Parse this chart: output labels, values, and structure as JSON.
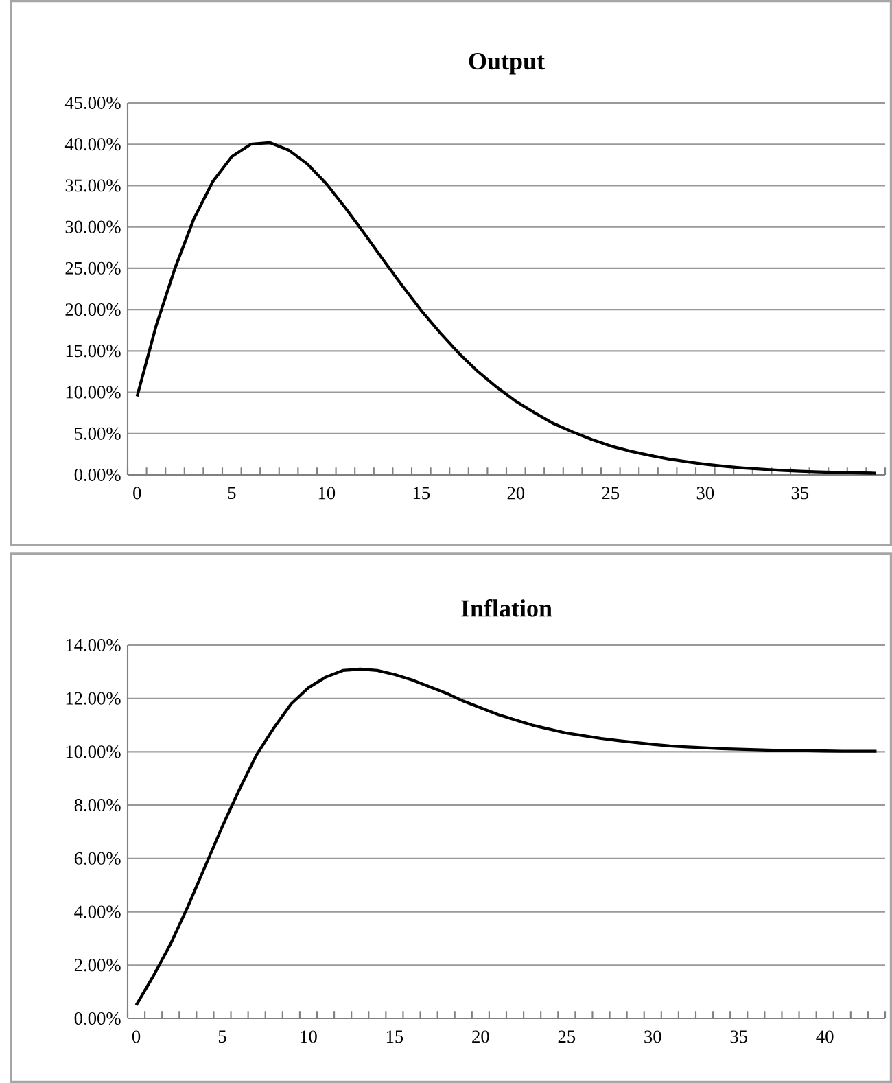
{
  "chart_data": [
    {
      "type": "line",
      "title": "Output",
      "categories": [
        "0",
        null,
        null,
        null,
        null,
        "5",
        null,
        null,
        null,
        null,
        "10",
        null,
        null,
        null,
        null,
        "15",
        null,
        null,
        null,
        null,
        "20",
        null,
        null,
        null,
        null,
        "25",
        null,
        null,
        null,
        null,
        "30",
        null,
        null,
        null,
        null,
        "35",
        null,
        null,
        null,
        null
      ],
      "series": [
        {
          "color": "#000000",
          "values": [
            9.5,
            18,
            25,
            31,
            35.5,
            38.5,
            40,
            40.2,
            39.3,
            37.6,
            35.2,
            32.3,
            29.2,
            26,
            22.9,
            19.9,
            17.2,
            14.7,
            12.5,
            10.6,
            8.9,
            7.5,
            6.2,
            5.2,
            4.3,
            3.5,
            2.9,
            2.4,
            1.95,
            1.6,
            1.3,
            1.05,
            0.85,
            0.7,
            0.55,
            0.45,
            0.37,
            0.3,
            0.25,
            0.2
          ]
        }
      ],
      "ylim": [
        0,
        45
      ],
      "yticks": [
        {
          "value": 0,
          "label": "0.00%"
        },
        {
          "value": 5,
          "label": "5.00%"
        },
        {
          "value": 10,
          "label": "10.00%"
        },
        {
          "value": 15,
          "label": "15.00%"
        },
        {
          "value": 20,
          "label": "20.00%"
        },
        {
          "value": 25,
          "label": "25.00%"
        },
        {
          "value": 30,
          "label": "30.00%"
        },
        {
          "value": 35,
          "label": "35.00%"
        },
        {
          "value": 40,
          "label": "40.00%"
        },
        {
          "value": 45,
          "label": "45.00%"
        }
      ],
      "grid": "y",
      "marker": "none",
      "line_style": "solid"
    },
    {
      "type": "line",
      "title": "Inflation",
      "categories": [
        "0",
        null,
        null,
        null,
        null,
        "5",
        null,
        null,
        null,
        null,
        "10",
        null,
        null,
        null,
        null,
        "15",
        null,
        null,
        null,
        null,
        "20",
        null,
        null,
        null,
        null,
        "25",
        null,
        null,
        null,
        null,
        "30",
        null,
        null,
        null,
        null,
        "35",
        null,
        null,
        null,
        null,
        "40",
        null,
        null,
        null
      ],
      "series": [
        {
          "color": "#000000",
          "values": [
            0.5,
            1.6,
            2.8,
            4.2,
            5.7,
            7.2,
            8.6,
            9.9,
            10.9,
            11.8,
            12.4,
            12.8,
            13.05,
            13.1,
            13.05,
            12.9,
            12.7,
            12.45,
            12.2,
            11.9,
            11.65,
            11.4,
            11.2,
            11.0,
            10.85,
            10.7,
            10.6,
            10.5,
            10.42,
            10.35,
            10.28,
            10.22,
            10.18,
            10.15,
            10.12,
            10.1,
            10.08,
            10.06,
            10.05,
            10.04,
            10.03,
            10.02,
            10.02,
            10.02
          ]
        }
      ],
      "ylim": [
        0,
        14
      ],
      "yticks": [
        {
          "value": 0,
          "label": "0.00%"
        },
        {
          "value": 2,
          "label": "2.00%"
        },
        {
          "value": 4,
          "label": "4.00%"
        },
        {
          "value": 6,
          "label": "6.00%"
        },
        {
          "value": 8,
          "label": "8.00%"
        },
        {
          "value": 10,
          "label": "10.00%"
        },
        {
          "value": 12,
          "label": "12.00%"
        },
        {
          "value": 14,
          "label": "14.00%"
        }
      ],
      "grid": "y",
      "marker": "none",
      "line_style": "solid"
    }
  ]
}
